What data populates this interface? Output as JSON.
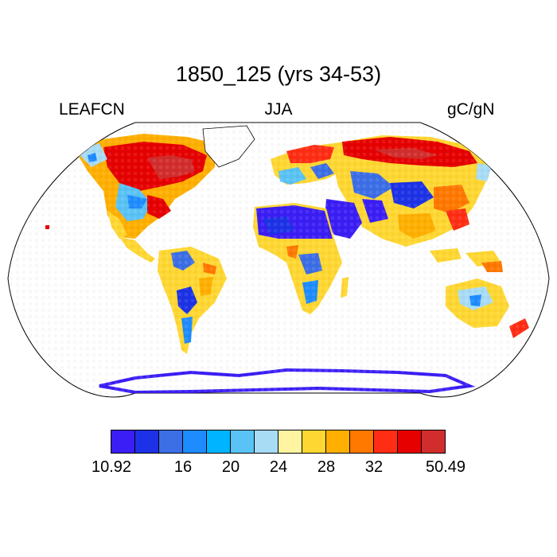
{
  "title": "1850_125 (yrs 34-53)",
  "left_label": "LEAFCN",
  "center_label": "JJA",
  "right_label": "gC/gN",
  "map": {
    "projection": "Robinson",
    "background": "#ffffff",
    "regions": {
      "greenland_ice": "no data",
      "antarctica": "low values along coastal margin",
      "sahara_arabia": "lowest values",
      "boreal_canada_siberia": "highest values"
    }
  },
  "colorbar": {
    "colors": [
      "#3b1ef5",
      "#1d32e6",
      "#3c6ee6",
      "#1e8cff",
      "#00b4ff",
      "#5ac3f5",
      "#a8dcf5",
      "#fff5a0",
      "#ffd732",
      "#ffaf00",
      "#ff7800",
      "#ff2d14",
      "#e60000",
      "#d22d2d"
    ],
    "labels": [
      {
        "text": "10.92",
        "boundary": 0
      },
      {
        "text": "16",
        "boundary": 3
      },
      {
        "text": "20",
        "boundary": 5
      },
      {
        "text": "24",
        "boundary": 7
      },
      {
        "text": "28",
        "boundary": 9
      },
      {
        "text": "32",
        "boundary": 11
      },
      {
        "text": "50.49",
        "boundary": 14
      }
    ]
  }
}
